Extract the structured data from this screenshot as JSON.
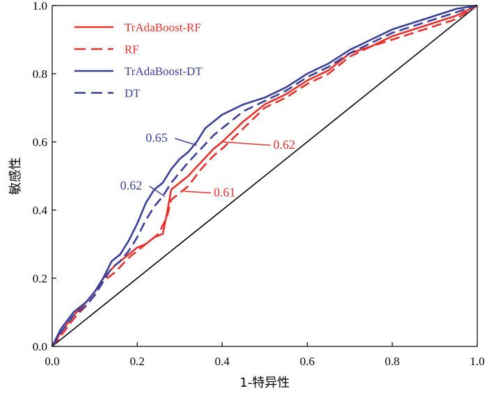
{
  "chart_data": {
    "type": "line",
    "xlabel": "1-特异性",
    "ylabel": "敏感性",
    "xlim": [
      0,
      1
    ],
    "ylim": [
      0,
      1
    ],
    "xticks": [
      "0.0",
      "0.2",
      "0.4",
      "0.6",
      "0.8",
      "1.0"
    ],
    "yticks": [
      "0.0",
      "0.2",
      "0.4",
      "0.6",
      "0.8",
      "1.0"
    ],
    "grid": false,
    "legend_position": "top-left",
    "series": [
      {
        "name": "TrAdaBoost-RF",
        "color": "#e8302a",
        "style": "solid",
        "x": [
          0,
          0.02,
          0.05,
          0.08,
          0.1,
          0.12,
          0.15,
          0.18,
          0.2,
          0.22,
          0.24,
          0.26,
          0.27,
          0.28,
          0.3,
          0.32,
          0.35,
          0.38,
          0.4,
          0.45,
          0.5,
          0.55,
          0.6,
          0.65,
          0.7,
          0.75,
          0.8,
          0.85,
          0.9,
          0.95,
          1.0
        ],
        "y": [
          0,
          0.04,
          0.09,
          0.13,
          0.16,
          0.2,
          0.24,
          0.27,
          0.29,
          0.3,
          0.32,
          0.33,
          0.39,
          0.46,
          0.48,
          0.5,
          0.54,
          0.58,
          0.6,
          0.66,
          0.71,
          0.74,
          0.78,
          0.81,
          0.86,
          0.88,
          0.91,
          0.93,
          0.95,
          0.97,
          1.0
        ]
      },
      {
        "name": "RF",
        "color": "#e8302a",
        "style": "dashed",
        "x": [
          0,
          0.02,
          0.05,
          0.08,
          0.1,
          0.12,
          0.15,
          0.18,
          0.2,
          0.22,
          0.25,
          0.27,
          0.28,
          0.3,
          0.32,
          0.35,
          0.38,
          0.4,
          0.45,
          0.5,
          0.55,
          0.6,
          0.65,
          0.7,
          0.75,
          0.8,
          0.85,
          0.9,
          0.95,
          1.0
        ],
        "y": [
          0,
          0.03,
          0.08,
          0.12,
          0.15,
          0.19,
          0.22,
          0.26,
          0.28,
          0.3,
          0.33,
          0.38,
          0.43,
          0.45,
          0.47,
          0.52,
          0.56,
          0.58,
          0.64,
          0.7,
          0.73,
          0.77,
          0.8,
          0.85,
          0.88,
          0.9,
          0.92,
          0.94,
          0.96,
          1.0
        ]
      },
      {
        "name": "TrAdaBoost-DT",
        "color": "#3a3f9a",
        "style": "solid",
        "x": [
          0,
          0.02,
          0.05,
          0.08,
          0.1,
          0.12,
          0.14,
          0.16,
          0.18,
          0.2,
          0.22,
          0.24,
          0.26,
          0.28,
          0.3,
          0.32,
          0.34,
          0.36,
          0.38,
          0.4,
          0.45,
          0.5,
          0.55,
          0.6,
          0.65,
          0.7,
          0.75,
          0.8,
          0.85,
          0.9,
          0.95,
          1.0
        ],
        "y": [
          0,
          0.05,
          0.1,
          0.13,
          0.16,
          0.2,
          0.25,
          0.27,
          0.31,
          0.36,
          0.42,
          0.46,
          0.48,
          0.52,
          0.55,
          0.57,
          0.6,
          0.64,
          0.66,
          0.68,
          0.71,
          0.73,
          0.76,
          0.8,
          0.83,
          0.87,
          0.9,
          0.93,
          0.95,
          0.97,
          0.99,
          1.0
        ]
      },
      {
        "name": "DT",
        "color": "#3a3f9a",
        "style": "dashed",
        "x": [
          0,
          0.02,
          0.05,
          0.08,
          0.1,
          0.12,
          0.14,
          0.16,
          0.18,
          0.2,
          0.22,
          0.24,
          0.26,
          0.28,
          0.3,
          0.32,
          0.35,
          0.38,
          0.4,
          0.45,
          0.5,
          0.55,
          0.6,
          0.65,
          0.7,
          0.75,
          0.8,
          0.85,
          0.9,
          0.95,
          1.0
        ],
        "y": [
          0,
          0.04,
          0.09,
          0.12,
          0.15,
          0.19,
          0.23,
          0.25,
          0.28,
          0.32,
          0.37,
          0.41,
          0.44,
          0.48,
          0.51,
          0.54,
          0.58,
          0.62,
          0.64,
          0.69,
          0.72,
          0.75,
          0.79,
          0.82,
          0.86,
          0.89,
          0.92,
          0.94,
          0.96,
          0.98,
          1.0
        ]
      },
      {
        "name": "",
        "color": "#000000",
        "style": "solid",
        "x": [
          0,
          1
        ],
        "y": [
          0,
          1
        ]
      }
    ],
    "annotations": [
      {
        "text": "0.65",
        "color": "#3a3f9a",
        "text_x": 0.22,
        "text_y": 0.6,
        "point_x": 0.34,
        "point_y": 0.59
      },
      {
        "text": "0.62",
        "color": "#3a3f9a",
        "text_x": 0.16,
        "text_y": 0.46,
        "point_x": 0.265,
        "point_y": 0.44
      },
      {
        "text": "0.62",
        "color": "#e8302a",
        "text_x": 0.52,
        "text_y": 0.58,
        "point_x": 0.4,
        "point_y": 0.6
      },
      {
        "text": "0.61",
        "color": "#e8302a",
        "text_x": 0.38,
        "text_y": 0.44,
        "point_x": 0.31,
        "point_y": 0.455
      }
    ]
  }
}
